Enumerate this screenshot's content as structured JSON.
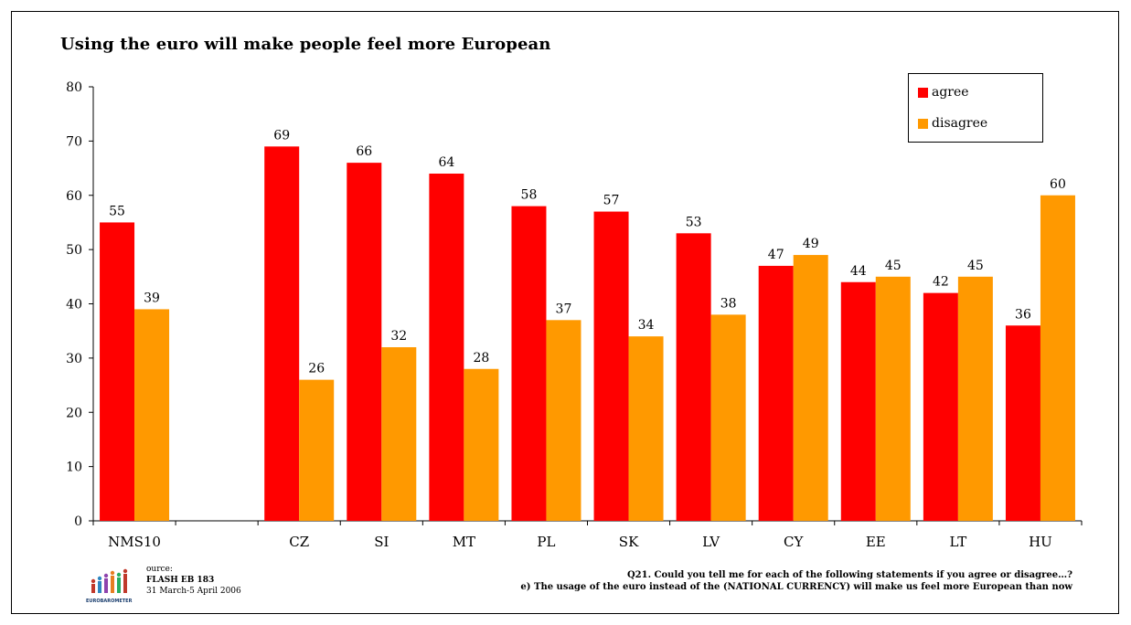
{
  "chart_data": {
    "type": "bar",
    "title": "Using the euro will make people feel more European",
    "categories": [
      "NMS10",
      "",
      "CZ",
      "SI",
      "MT",
      "PL",
      "SK",
      "LV",
      "CY",
      "EE",
      "LT",
      "HU"
    ],
    "series": [
      {
        "name": "agree",
        "color": "#ff0000",
        "values": [
          55,
          null,
          69,
          66,
          64,
          58,
          57,
          53,
          47,
          44,
          42,
          36
        ]
      },
      {
        "name": "disagree",
        "color": "#ff9900",
        "values": [
          39,
          null,
          26,
          32,
          28,
          37,
          34,
          38,
          49,
          45,
          45,
          60
        ]
      }
    ],
    "ylim": [
      0,
      80
    ],
    "yticks": [
      0,
      10,
      20,
      30,
      40,
      50,
      60,
      70,
      80
    ],
    "xlabel": "",
    "ylabel": "",
    "grid": false,
    "legend_position": "top-right"
  },
  "legend": {
    "agree_label": "agree",
    "disagree_label": "disagree"
  },
  "source": {
    "line1": "ource:",
    "line2": "FLASH EB 183",
    "line3": "31 March-5 April 2006",
    "logo_text": "EUROBAROMETER"
  },
  "question": {
    "line1": "Q21. Could you tell me for each of the following statements if you agree or disagree…?",
    "line2": "e)  The usage of the euro instead of the (NATIONAL CURRENCY) will make us feel more European than now"
  }
}
